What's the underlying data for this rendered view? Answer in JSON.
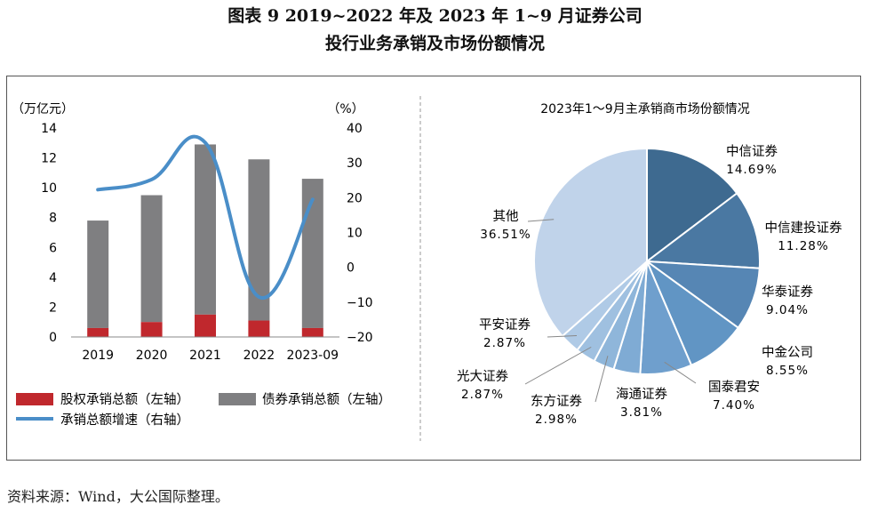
{
  "figure": {
    "title_line1": "图表 9  2019~2022 年及 2023 年 1~9 月证券公司",
    "title_line2": "投行业务承销及市场份额情况",
    "source": "资料来源：Wind，大公国际整理。"
  },
  "colors": {
    "equity": "#c0282d",
    "bond": "#7f7f81",
    "growth": "#4a8ec8",
    "axis": "#888888",
    "pie_edge": "#ffffff"
  },
  "chart_data": [
    {
      "type": "bar",
      "subtype": "stacked-bar-with-line",
      "left_unit": "（万亿元）",
      "right_unit": "（%）",
      "categories": [
        "2019",
        "2020",
        "2021",
        "2022",
        "2023-09"
      ],
      "left_ylim": [
        0,
        14
      ],
      "left_ticks": [
        0,
        2,
        4,
        6,
        8,
        10,
        12,
        14
      ],
      "right_ylim": [
        -20,
        40
      ],
      "right_ticks": [
        -20,
        -10,
        0,
        10,
        20,
        30,
        40
      ],
      "series": [
        {
          "name": "股权承销总额（左轴）",
          "axis": "left",
          "kind": "bar",
          "values": [
            0.6,
            1.0,
            1.5,
            1.1,
            0.6
          ]
        },
        {
          "name": "债券承销总额（左轴）",
          "axis": "left",
          "kind": "bar",
          "values": [
            7.2,
            8.5,
            11.4,
            10.8,
            10.0
          ]
        },
        {
          "name": "承销总额增速（右轴）",
          "axis": "right",
          "kind": "line",
          "values": [
            22.3,
            25.2,
            35.8,
            -8.5,
            19.5
          ]
        }
      ],
      "legend_position": "bottom"
    },
    {
      "type": "pie",
      "title": "2023年1～9月主承销商市场份额情况",
      "slices": [
        {
          "label": "中信证券",
          "value": 14.69,
          "pct": "14.69%",
          "color": "#3e6a90"
        },
        {
          "label": "中信建投证券",
          "value": 11.28,
          "pct": "11.28%",
          "color": "#4a78a2"
        },
        {
          "label": "华泰证券",
          "value": 9.04,
          "pct": "9.04%",
          "color": "#5686b4"
        },
        {
          "label": "中金公司",
          "value": 8.55,
          "pct": "8.55%",
          "color": "#6195c4"
        },
        {
          "label": "国泰君安",
          "value": 7.4,
          "pct": "7.40%",
          "color": "#6f9fcd"
        },
        {
          "label": "海通证券",
          "value": 3.81,
          "pct": "3.81%",
          "color": "#7fabd4"
        },
        {
          "label": "东方证券",
          "value": 2.98,
          "pct": "2.98%",
          "color": "#8fb6da"
        },
        {
          "label": "光大证券",
          "value": 2.87,
          "pct": "2.87%",
          "color": "#9fc0e0"
        },
        {
          "label": "平安证券",
          "value": 2.87,
          "pct": "2.87%",
          "color": "#afcae6"
        },
        {
          "label": "其他",
          "value": 36.51,
          "pct": "36.51%",
          "color": "#c0d3ea"
        }
      ]
    }
  ]
}
